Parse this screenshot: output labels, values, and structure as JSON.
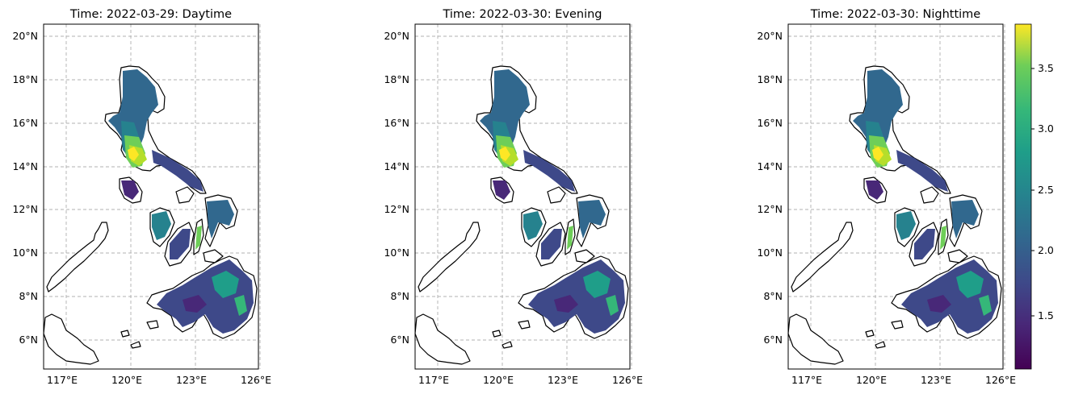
{
  "panels": [
    {
      "title": "Time: 2022-03-29: Daytime"
    },
    {
      "title": "Time: 2022-03-30: Evening"
    },
    {
      "title": "Time: 2022-03-30: Nighttime"
    }
  ],
  "axes": {
    "lon_ticks": [
      "117°E",
      "120°E",
      "123°E",
      "126°E"
    ],
    "lat_ticks": [
      "20°N",
      "18°N",
      "16°N",
      "14°N",
      "12°N",
      "10°N",
      "8°N",
      "6°N"
    ],
    "lon_values": [
      117,
      120,
      123,
      126
    ],
    "lat_values": [
      20,
      18,
      16,
      14,
      12,
      10,
      8,
      6
    ],
    "lon_range": [
      116.0,
      126.8
    ],
    "lat_range": [
      4.6,
      20.6
    ],
    "grid": true
  },
  "colorbar": {
    "colormap": "viridis",
    "range": [
      1.0,
      3.85
    ],
    "ticks": [
      "1.5",
      "2.0",
      "2.5",
      "3.0",
      "3.5"
    ],
    "tick_values": [
      1.5,
      2.0,
      2.5,
      3.0,
      3.5
    ]
  },
  "colors": {
    "viridis_low": "#440154",
    "viridis_mid": "#21918c",
    "viridis_high": "#fde725",
    "coast": "#000000",
    "grid": "#b0b0b0"
  }
}
